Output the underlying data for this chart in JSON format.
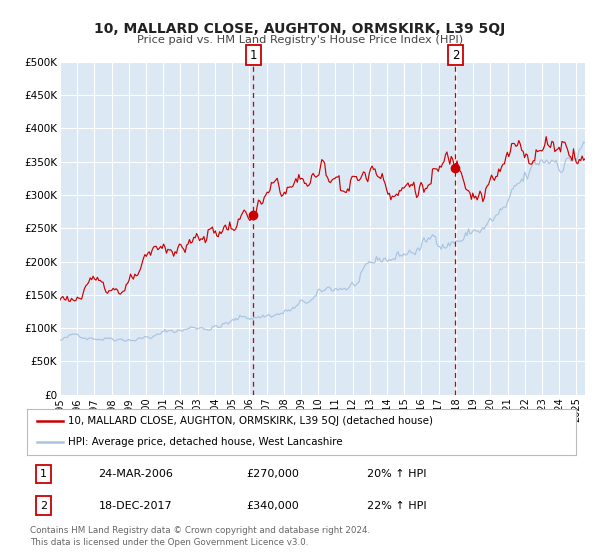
{
  "title": "10, MALLARD CLOSE, AUGHTON, ORMSKIRK, L39 5QJ",
  "subtitle": "Price paid vs. HM Land Registry's House Price Index (HPI)",
  "ylim": [
    0,
    500000
  ],
  "xlim_start": 1995.0,
  "xlim_end": 2025.5,
  "yticks": [
    0,
    50000,
    100000,
    150000,
    200000,
    250000,
    300000,
    350000,
    400000,
    450000,
    500000
  ],
  "ytick_labels": [
    "£0",
    "£50K",
    "£100K",
    "£150K",
    "£200K",
    "£250K",
    "£300K",
    "£350K",
    "£400K",
    "£450K",
    "£500K"
  ],
  "xticks": [
    1995,
    1996,
    1997,
    1998,
    1999,
    2000,
    2001,
    2002,
    2003,
    2004,
    2005,
    2006,
    2007,
    2008,
    2009,
    2010,
    2011,
    2012,
    2013,
    2014,
    2015,
    2016,
    2017,
    2018,
    2019,
    2020,
    2021,
    2022,
    2023,
    2024,
    2025
  ],
  "background_color": "#ffffff",
  "plot_bg_color": "#dce9f5",
  "grid_color": "#ffffff",
  "red_line_color": "#cc0000",
  "blue_line_color": "#aac4e0",
  "marker1_x": 2006.22,
  "marker1_y": 270000,
  "marker2_x": 2017.97,
  "marker2_y": 340000,
  "vline1_x": 2006.22,
  "vline2_x": 2017.97,
  "vline_color": "#cc0000",
  "legend_label_red": "10, MALLARD CLOSE, AUGHTON, ORMSKIRK, L39 5QJ (detached house)",
  "legend_label_blue": "HPI: Average price, detached house, West Lancashire",
  "annotation1_num": "1",
  "annotation1_date": "24-MAR-2006",
  "annotation1_price": "£270,000",
  "annotation1_hpi": "20% ↑ HPI",
  "annotation2_num": "2",
  "annotation2_date": "18-DEC-2017",
  "annotation2_price": "£340,000",
  "annotation2_hpi": "22% ↑ HPI",
  "footer1": "Contains HM Land Registry data © Crown copyright and database right 2024.",
  "footer2": "This data is licensed under the Open Government Licence v3.0."
}
